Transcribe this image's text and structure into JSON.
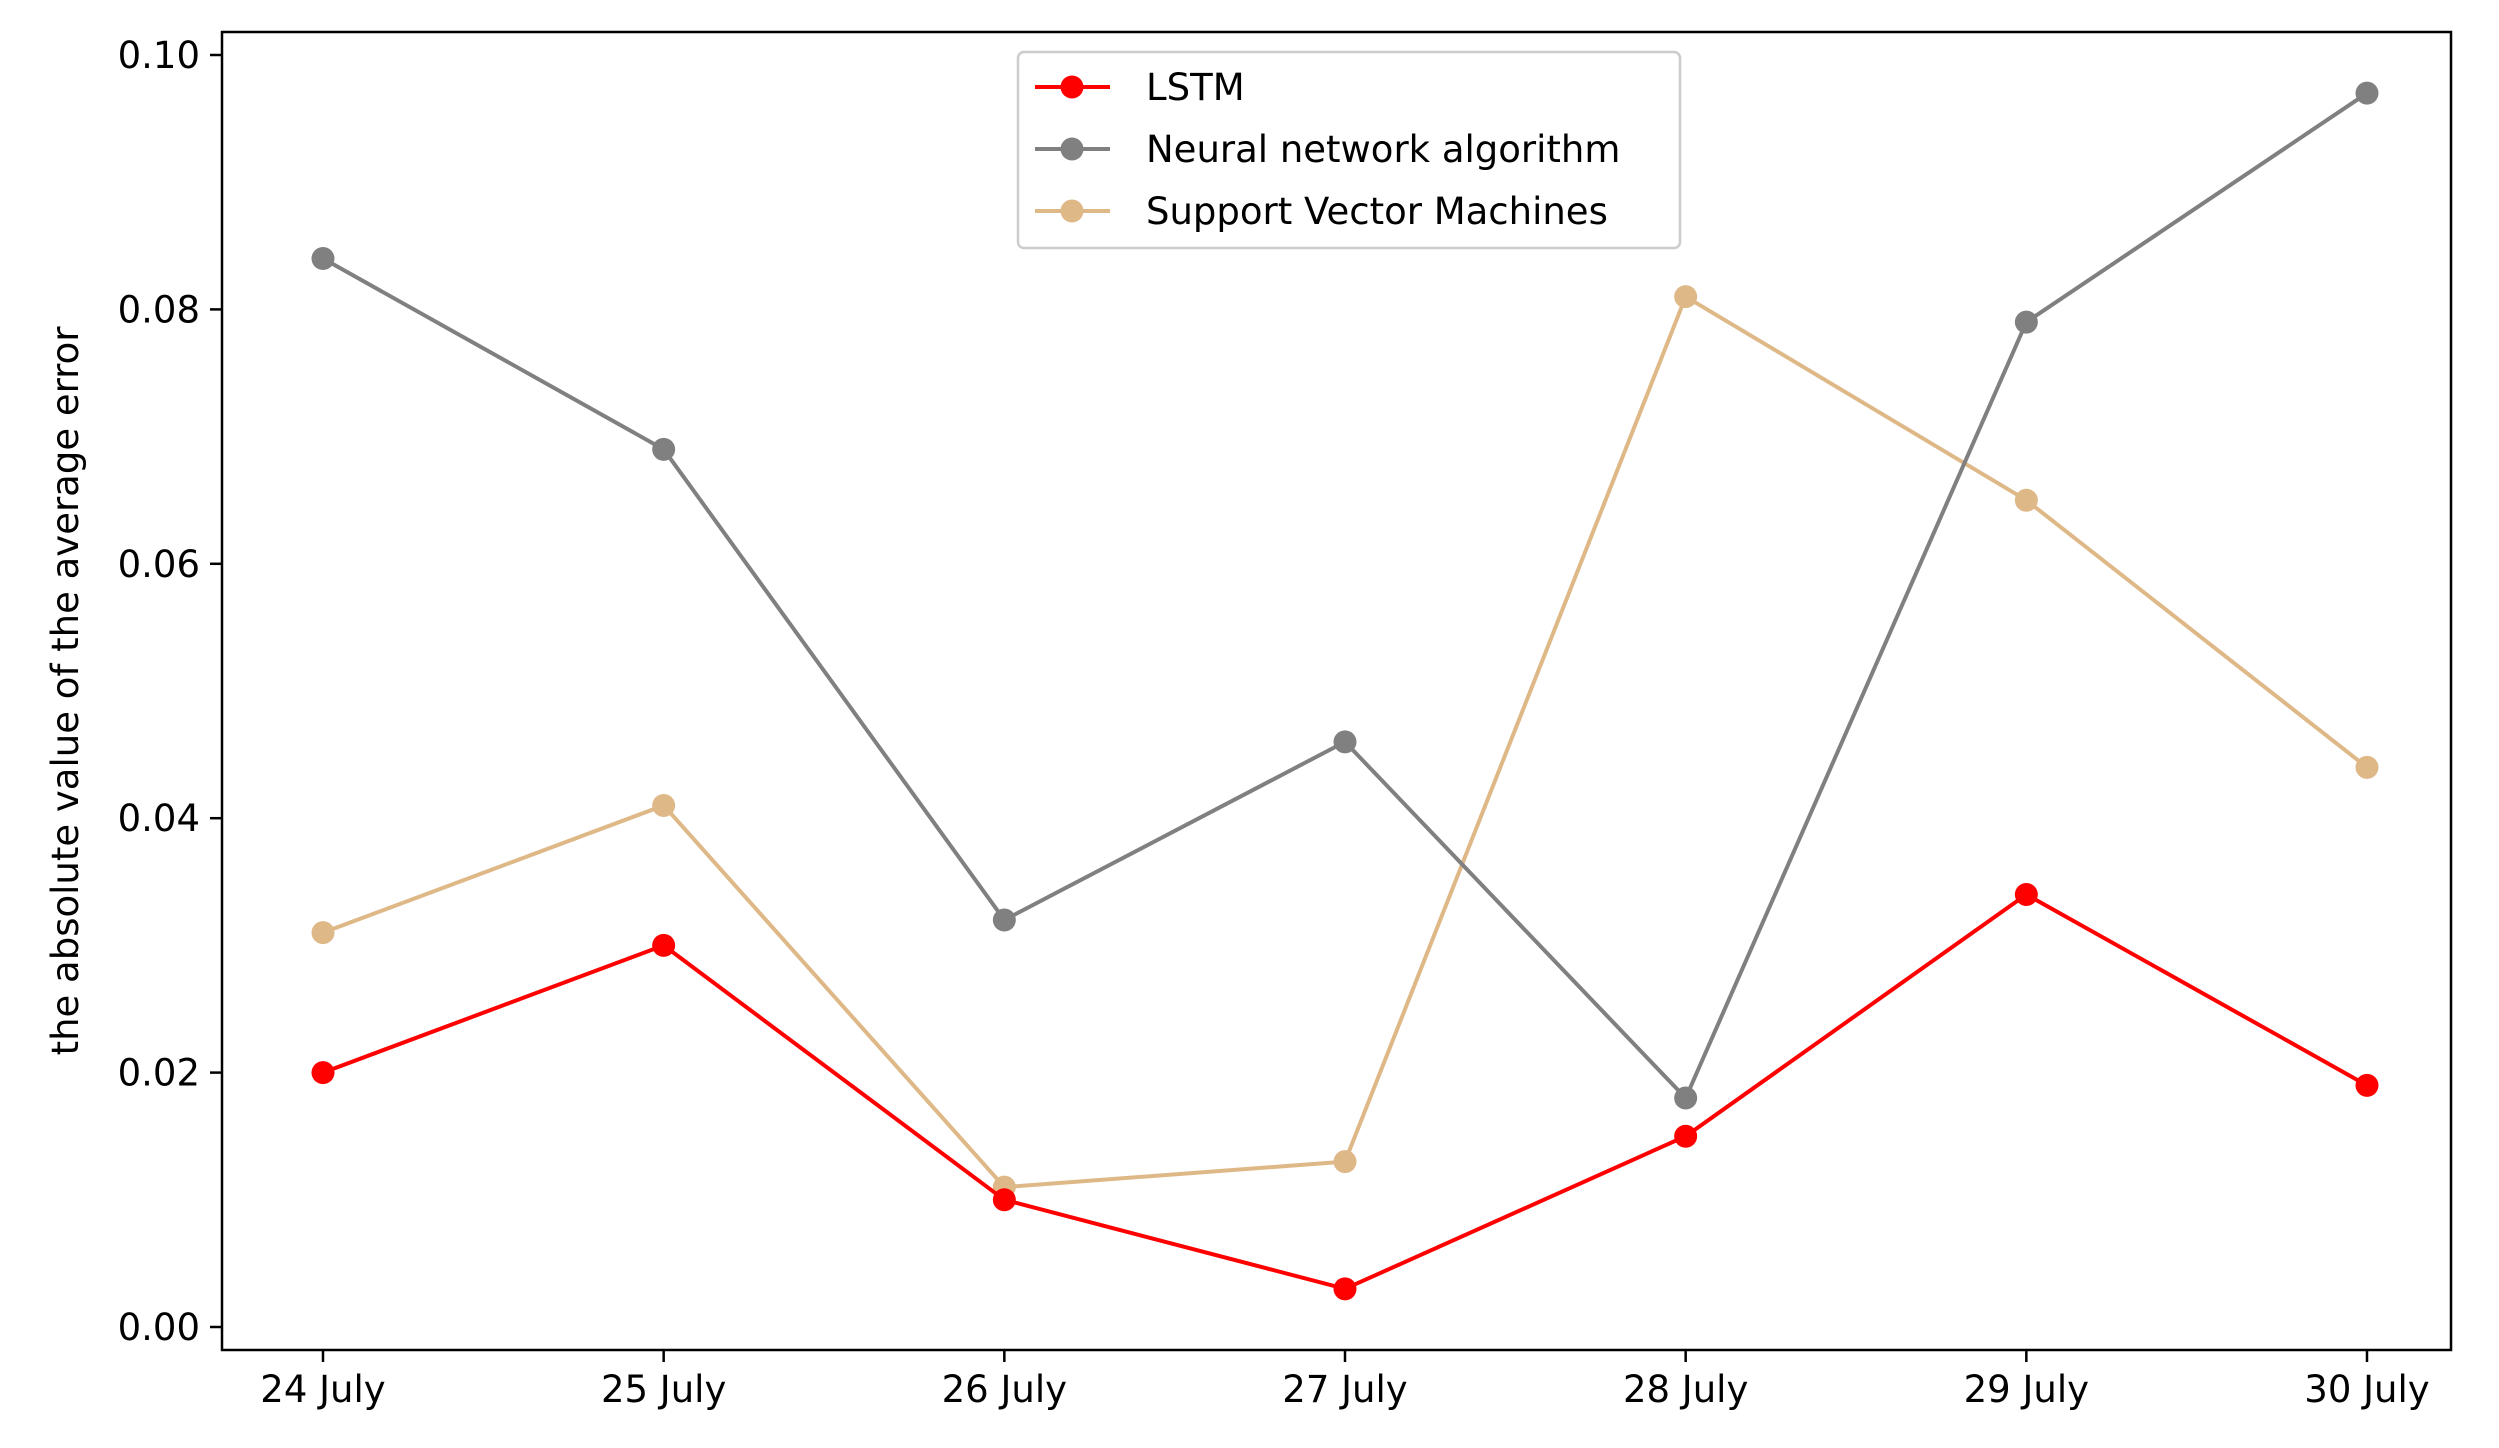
{
  "chart_data": {
    "type": "line",
    "title": "",
    "xlabel": "",
    "ylabel": "the absolute value of the average error",
    "categories": [
      "24 July",
      "25 July",
      "26 July",
      "27 July",
      "28 July",
      "29 July",
      "30 July"
    ],
    "ylim": [
      0.0,
      0.1
    ],
    "yticks": [
      "0.00",
      "0.02",
      "0.04",
      "0.06",
      "0.08",
      "0.10"
    ],
    "ytick_values": [
      0.0,
      0.02,
      0.04,
      0.06,
      0.08,
      0.1
    ],
    "grid": false,
    "legend_position": "top-center",
    "series": [
      {
        "name": "LSTM",
        "color": "#ff0000",
        "values": [
          0.02,
          0.03,
          0.01,
          0.003,
          0.015,
          0.034,
          0.019
        ]
      },
      {
        "name": "Neural network algorithm",
        "color": "#808080",
        "values": [
          0.084,
          0.069,
          0.032,
          0.046,
          0.018,
          0.079,
          0.097
        ]
      },
      {
        "name": "Support Vector Machines",
        "color": "#deb887",
        "values": [
          0.031,
          0.041,
          0.011,
          0.013,
          0.081,
          0.065,
          0.044
        ]
      }
    ]
  }
}
